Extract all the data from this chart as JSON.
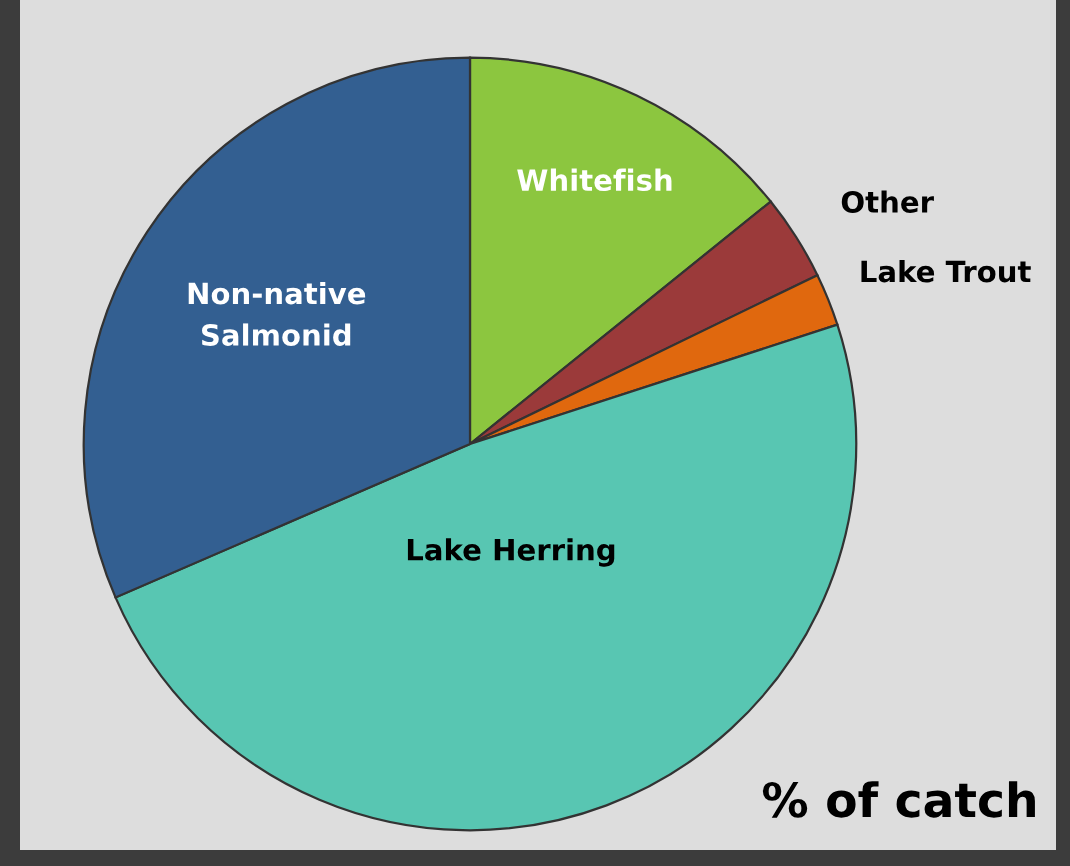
{
  "chart_data": {
    "type": "pie",
    "categories": [
      "Whitefish",
      "Other",
      "Lake Trout",
      "Lake Herring",
      "Non-native\nSalmonid"
    ],
    "values": [
      14.2,
      3.6,
      2.2,
      48.5,
      31.5
    ],
    "colors": [
      "#8cc63f",
      "#9b3a3a",
      "#e0680e",
      "#58c6b2",
      "#335f91"
    ],
    "annotations": [
      "% of catch"
    ]
  }
}
